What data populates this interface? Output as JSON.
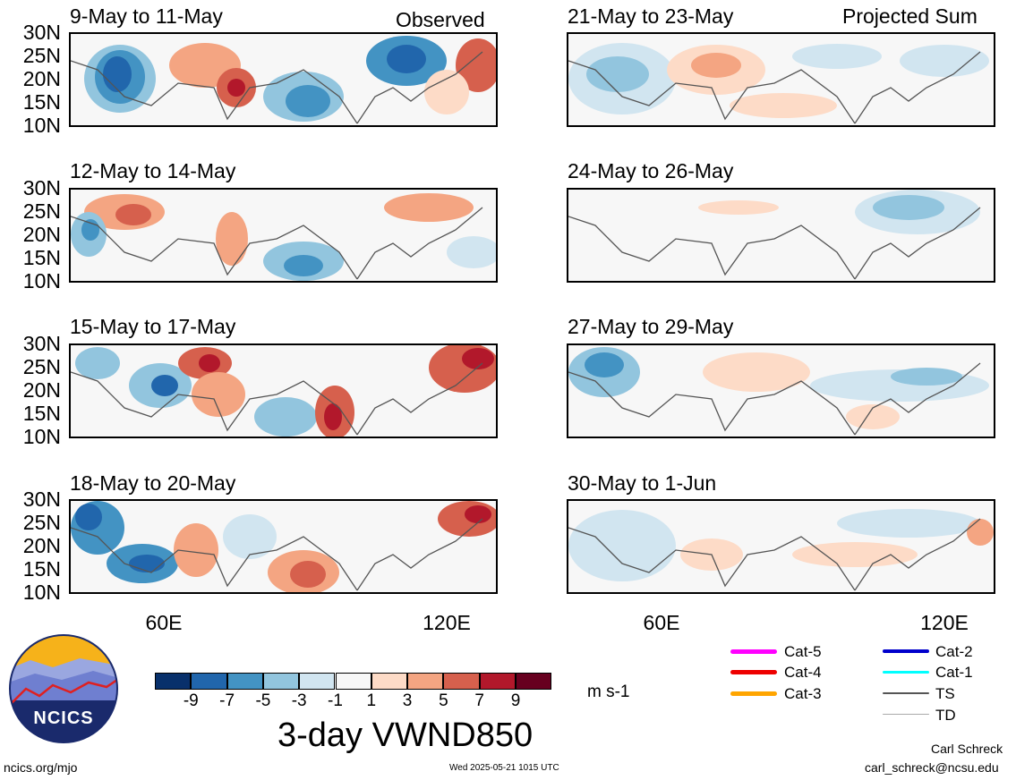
{
  "panels": [
    {
      "title": "9-May to 11-May",
      "corner": "Observed"
    },
    {
      "title": "12-May to 14-May"
    },
    {
      "title": "15-May to 17-May"
    },
    {
      "title": "18-May to 20-May"
    },
    {
      "title": "21-May to 23-May",
      "corner": "Projected Sum"
    },
    {
      "title": "24-May to 26-May"
    },
    {
      "title": "27-May to 29-May"
    },
    {
      "title": "30-May to 1-Jun"
    }
  ],
  "lat_labels": [
    "30N",
    "25N",
    "20N",
    "15N",
    "10N"
  ],
  "lon_labels": [
    "60E",
    "120E"
  ],
  "colorbar": {
    "colors": [
      "#08306b",
      "#2166ac",
      "#4393c3",
      "#92c5de",
      "#d1e5f0",
      "#f7f7f7",
      "#fddbc7",
      "#f4a582",
      "#d6604d",
      "#b2182b",
      "#67001f"
    ],
    "ticks": [
      "-9",
      "-7",
      "-5",
      "-3",
      "-1",
      "1",
      "3",
      "5",
      "7",
      "9"
    ],
    "units": "m s-1"
  },
  "title": "3-day VWND850",
  "legend": [
    {
      "label": "Cat-5",
      "color": "#ff00ff"
    },
    {
      "label": "Cat-4",
      "color": "#ee0000"
    },
    {
      "label": "Cat-3",
      "color": "#ffa500"
    },
    {
      "label": "Cat-2",
      "color": "#0000cc"
    },
    {
      "label": "Cat-1",
      "color": "#00ffff"
    },
    {
      "label": "TS",
      "color": "#555555"
    },
    {
      "label": "TD",
      "color": "#aaaaaa"
    }
  ],
  "logo": {
    "text": "NCICS"
  },
  "footer": {
    "site": "ncics.org/mjo",
    "timestamp": "Wed 2025-05-21 1015 UTC",
    "author": "Carl Schreck",
    "email": "carl_schreck@ncsu.edu"
  }
}
